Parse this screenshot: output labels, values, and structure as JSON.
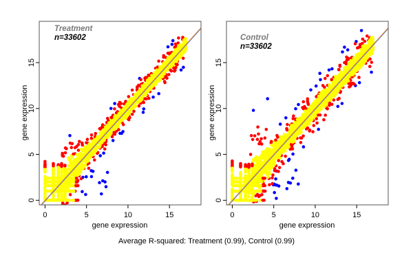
{
  "chart_data": [
    {
      "type": "scatter",
      "title": "Treatment",
      "subtitle": "n=33602",
      "n": 33602,
      "xlabel": "gene expression",
      "ylabel": "gene expression",
      "xlim": [
        -0.7,
        18.8
      ],
      "ylim": [
        -0.5,
        19.5
      ],
      "xticks": [
        0,
        5,
        10,
        15
      ],
      "yticks": [
        0,
        5,
        10,
        15
      ],
      "grid": false,
      "reference_line": {
        "slope": 1,
        "intercept": 0,
        "colors": [
          "#e69a3c",
          "#3b5bd6"
        ]
      },
      "point_categories": [
        {
          "name": "within range",
          "color": "#ffff00"
        },
        {
          "name": "outlier",
          "color": "#ff0000"
        },
        {
          "name": "extreme outlier",
          "color": "#0000ff"
        }
      ],
      "spread": {
        "core_sd": 0.35,
        "outlier_sd": 0.55
      },
      "low_value_stripes": [
        0,
        1,
        1.6,
        2.0,
        2.4
      ],
      "r_squared": 0.99
    },
    {
      "type": "scatter",
      "title": "Control",
      "subtitle": "n=33602",
      "n": 33602,
      "xlabel": "gene expression",
      "ylabel": "gene expression",
      "xlim": [
        -0.7,
        18.8
      ],
      "ylim": [
        -0.5,
        19.5
      ],
      "xticks": [
        0,
        5,
        10,
        15
      ],
      "yticks": [
        0,
        5,
        10,
        15
      ],
      "grid": false,
      "reference_line": {
        "slope": 1,
        "intercept": 0,
        "colors": [
          "#e69a3c",
          "#3b5bd6"
        ]
      },
      "point_categories": [
        {
          "name": "within range",
          "color": "#ffff00"
        },
        {
          "name": "outlier",
          "color": "#ff0000"
        },
        {
          "name": "extreme outlier",
          "color": "#0000ff"
        }
      ],
      "spread": {
        "core_sd": 0.45,
        "outlier_sd": 0.75
      },
      "low_value_stripes": [
        0,
        1,
        1.6,
        2.0,
        2.4
      ],
      "r_squared": 0.99
    }
  ],
  "caption": "Average R-squared: Treatment (0.99), Control (0.99)",
  "labels": {
    "p1_title": "Treatment",
    "p1_n": "n=33602",
    "p2_title": "Control",
    "p2_n": "n=33602",
    "xlabel": "gene expression",
    "ylabel": "gene expression",
    "ticks": [
      "0",
      "5",
      "10",
      "15"
    ]
  }
}
